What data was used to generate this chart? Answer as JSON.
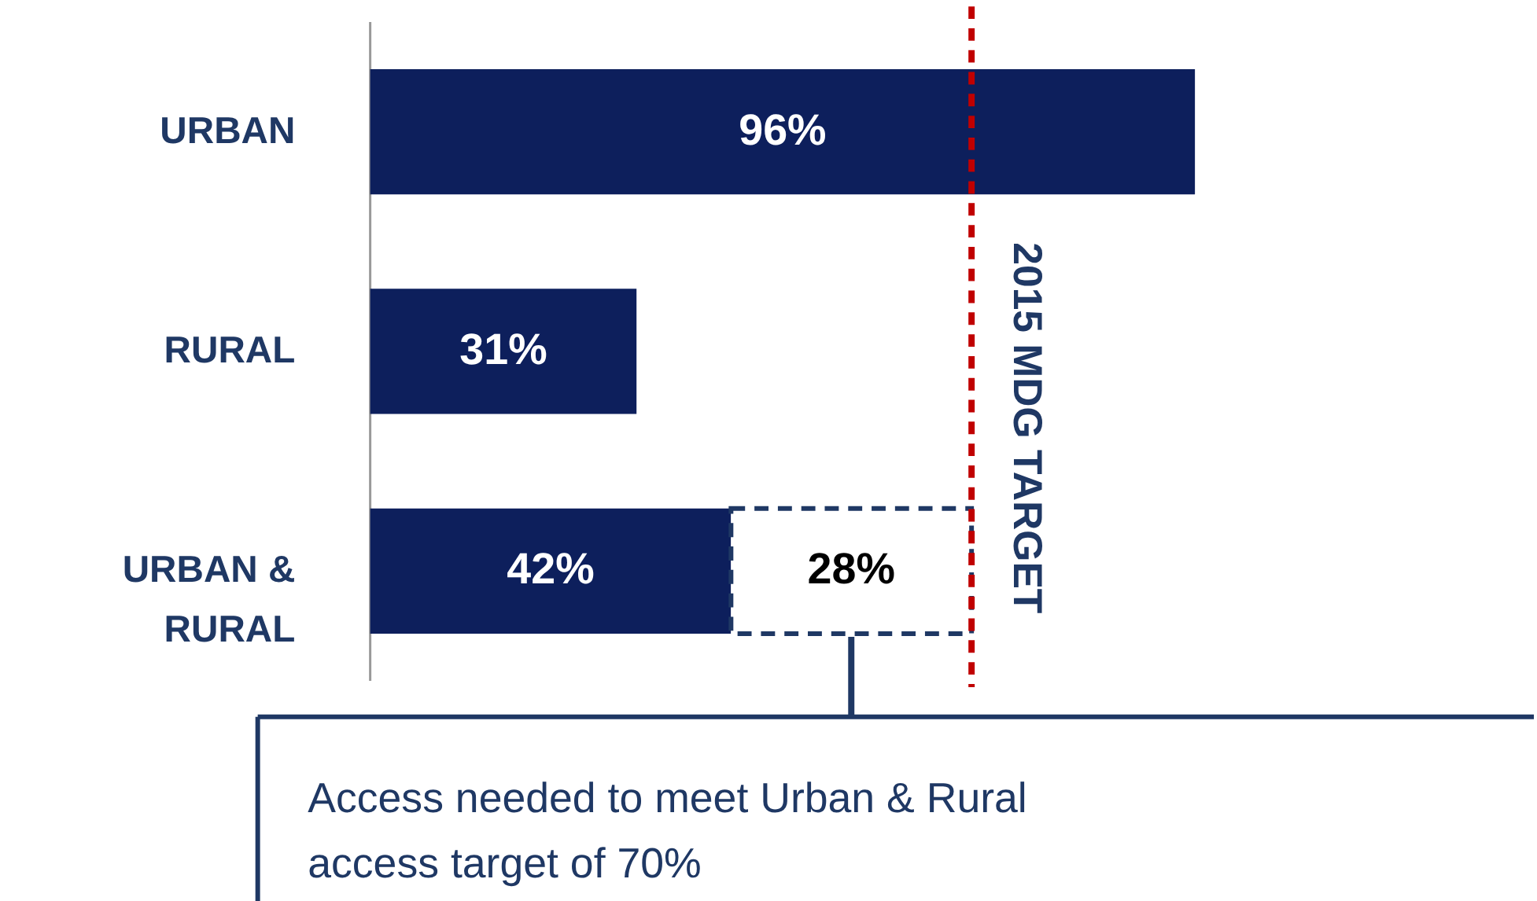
{
  "chart_data": {
    "type": "bar",
    "orientation": "horizontal",
    "stacked": true,
    "categories": [
      "URBAN",
      "RURAL",
      "URBAN & RURAL"
    ],
    "series": [
      {
        "color": "#0d1f5c",
        "values": [
          96,
          31,
          42
        ],
        "value_labels": [
          "96%",
          "31%",
          "42%"
        ]
      },
      {
        "color": "#ffffff",
        "line_style": "dashed",
        "values": [
          null,
          null,
          28
        ],
        "value_labels": [
          null,
          null,
          "28%"
        ]
      }
    ],
    "ref_lines": [
      {
        "axis": "x",
        "value": 70,
        "label": "2015 MDG TARGET",
        "color": "#c00000",
        "line_style": "dashed"
      }
    ],
    "annotations": [
      "Access needed to meet Urban & Rural access target of 70%"
    ]
  }
}
